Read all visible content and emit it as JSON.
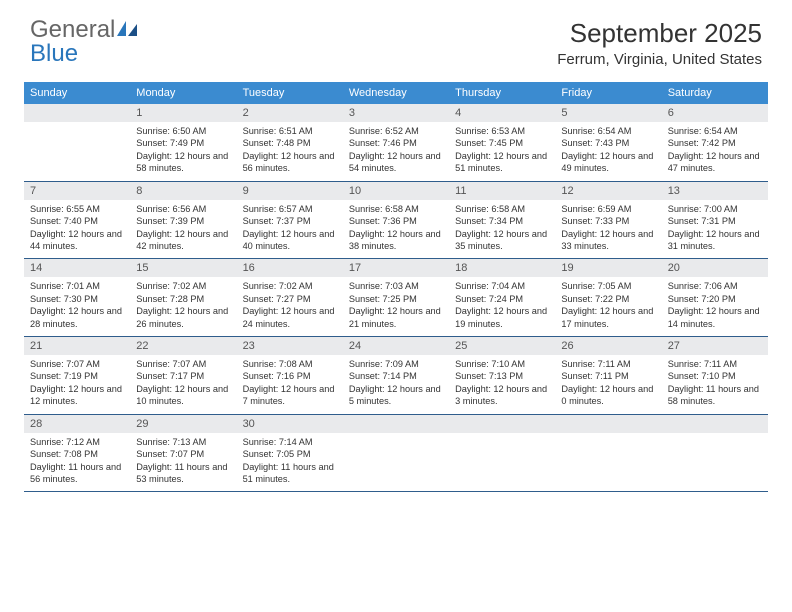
{
  "logo": {
    "general": "General",
    "blue": "Blue"
  },
  "title": "September 2025",
  "location": "Ferrum, Virginia, United States",
  "colors": {
    "header_bg": "#3b8bd0",
    "header_text": "#ffffff",
    "daynum_bg": "#e9eaec",
    "daynum_text": "#555555",
    "rule": "#2f5d8c",
    "body_text": "#333333"
  },
  "day_headers": [
    "Sunday",
    "Monday",
    "Tuesday",
    "Wednesday",
    "Thursday",
    "Friday",
    "Saturday"
  ],
  "weeks": [
    [
      {
        "n": "",
        "lines": []
      },
      {
        "n": "1",
        "lines": [
          "Sunrise: 6:50 AM",
          "Sunset: 7:49 PM",
          "Daylight: 12 hours and 58 minutes."
        ]
      },
      {
        "n": "2",
        "lines": [
          "Sunrise: 6:51 AM",
          "Sunset: 7:48 PM",
          "Daylight: 12 hours and 56 minutes."
        ]
      },
      {
        "n": "3",
        "lines": [
          "Sunrise: 6:52 AM",
          "Sunset: 7:46 PM",
          "Daylight: 12 hours and 54 minutes."
        ]
      },
      {
        "n": "4",
        "lines": [
          "Sunrise: 6:53 AM",
          "Sunset: 7:45 PM",
          "Daylight: 12 hours and 51 minutes."
        ]
      },
      {
        "n": "5",
        "lines": [
          "Sunrise: 6:54 AM",
          "Sunset: 7:43 PM",
          "Daylight: 12 hours and 49 minutes."
        ]
      },
      {
        "n": "6",
        "lines": [
          "Sunrise: 6:54 AM",
          "Sunset: 7:42 PM",
          "Daylight: 12 hours and 47 minutes."
        ]
      }
    ],
    [
      {
        "n": "7",
        "lines": [
          "Sunrise: 6:55 AM",
          "Sunset: 7:40 PM",
          "Daylight: 12 hours and 44 minutes."
        ]
      },
      {
        "n": "8",
        "lines": [
          "Sunrise: 6:56 AM",
          "Sunset: 7:39 PM",
          "Daylight: 12 hours and 42 minutes."
        ]
      },
      {
        "n": "9",
        "lines": [
          "Sunrise: 6:57 AM",
          "Sunset: 7:37 PM",
          "Daylight: 12 hours and 40 minutes."
        ]
      },
      {
        "n": "10",
        "lines": [
          "Sunrise: 6:58 AM",
          "Sunset: 7:36 PM",
          "Daylight: 12 hours and 38 minutes."
        ]
      },
      {
        "n": "11",
        "lines": [
          "Sunrise: 6:58 AM",
          "Sunset: 7:34 PM",
          "Daylight: 12 hours and 35 minutes."
        ]
      },
      {
        "n": "12",
        "lines": [
          "Sunrise: 6:59 AM",
          "Sunset: 7:33 PM",
          "Daylight: 12 hours and 33 minutes."
        ]
      },
      {
        "n": "13",
        "lines": [
          "Sunrise: 7:00 AM",
          "Sunset: 7:31 PM",
          "Daylight: 12 hours and 31 minutes."
        ]
      }
    ],
    [
      {
        "n": "14",
        "lines": [
          "Sunrise: 7:01 AM",
          "Sunset: 7:30 PM",
          "Daylight: 12 hours and 28 minutes."
        ]
      },
      {
        "n": "15",
        "lines": [
          "Sunrise: 7:02 AM",
          "Sunset: 7:28 PM",
          "Daylight: 12 hours and 26 minutes."
        ]
      },
      {
        "n": "16",
        "lines": [
          "Sunrise: 7:02 AM",
          "Sunset: 7:27 PM",
          "Daylight: 12 hours and 24 minutes."
        ]
      },
      {
        "n": "17",
        "lines": [
          "Sunrise: 7:03 AM",
          "Sunset: 7:25 PM",
          "Daylight: 12 hours and 21 minutes."
        ]
      },
      {
        "n": "18",
        "lines": [
          "Sunrise: 7:04 AM",
          "Sunset: 7:24 PM",
          "Daylight: 12 hours and 19 minutes."
        ]
      },
      {
        "n": "19",
        "lines": [
          "Sunrise: 7:05 AM",
          "Sunset: 7:22 PM",
          "Daylight: 12 hours and 17 minutes."
        ]
      },
      {
        "n": "20",
        "lines": [
          "Sunrise: 7:06 AM",
          "Sunset: 7:20 PM",
          "Daylight: 12 hours and 14 minutes."
        ]
      }
    ],
    [
      {
        "n": "21",
        "lines": [
          "Sunrise: 7:07 AM",
          "Sunset: 7:19 PM",
          "Daylight: 12 hours and 12 minutes."
        ]
      },
      {
        "n": "22",
        "lines": [
          "Sunrise: 7:07 AM",
          "Sunset: 7:17 PM",
          "Daylight: 12 hours and 10 minutes."
        ]
      },
      {
        "n": "23",
        "lines": [
          "Sunrise: 7:08 AM",
          "Sunset: 7:16 PM",
          "Daylight: 12 hours and 7 minutes."
        ]
      },
      {
        "n": "24",
        "lines": [
          "Sunrise: 7:09 AM",
          "Sunset: 7:14 PM",
          "Daylight: 12 hours and 5 minutes."
        ]
      },
      {
        "n": "25",
        "lines": [
          "Sunrise: 7:10 AM",
          "Sunset: 7:13 PM",
          "Daylight: 12 hours and 3 minutes."
        ]
      },
      {
        "n": "26",
        "lines": [
          "Sunrise: 7:11 AM",
          "Sunset: 7:11 PM",
          "Daylight: 12 hours and 0 minutes."
        ]
      },
      {
        "n": "27",
        "lines": [
          "Sunrise: 7:11 AM",
          "Sunset: 7:10 PM",
          "Daylight: 11 hours and 58 minutes."
        ]
      }
    ],
    [
      {
        "n": "28",
        "lines": [
          "Sunrise: 7:12 AM",
          "Sunset: 7:08 PM",
          "Daylight: 11 hours and 56 minutes."
        ]
      },
      {
        "n": "29",
        "lines": [
          "Sunrise: 7:13 AM",
          "Sunset: 7:07 PM",
          "Daylight: 11 hours and 53 minutes."
        ]
      },
      {
        "n": "30",
        "lines": [
          "Sunrise: 7:14 AM",
          "Sunset: 7:05 PM",
          "Daylight: 11 hours and 51 minutes."
        ]
      },
      {
        "n": "",
        "lines": []
      },
      {
        "n": "",
        "lines": []
      },
      {
        "n": "",
        "lines": []
      },
      {
        "n": "",
        "lines": []
      }
    ]
  ]
}
